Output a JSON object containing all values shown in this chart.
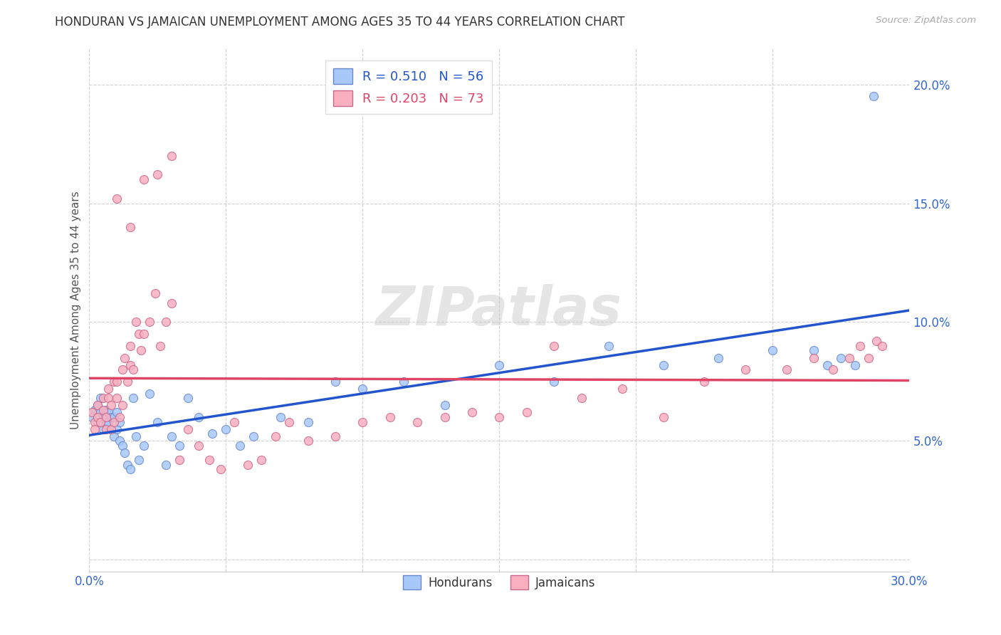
{
  "title": "HONDURAN VS JAMAICAN UNEMPLOYMENT AMONG AGES 35 TO 44 YEARS CORRELATION CHART",
  "source": "Source: ZipAtlas.com",
  "ylabel": "Unemployment Among Ages 35 to 44 years",
  "xlim": [
    0.0,
    0.3
  ],
  "ylim": [
    -0.005,
    0.215
  ],
  "honduran_color": "#a8c8fa",
  "jamaican_color": "#f8b0c0",
  "honduran_edge": "#6688cc",
  "jamaican_edge": "#cc6688",
  "line_honduran": "#2255cc",
  "line_jamaican": "#dd4466",
  "legend_honduran_r": "R = 0.510",
  "legend_honduran_n": "N = 56",
  "legend_jamaican_r": "R = 0.203",
  "legend_jamaican_n": "N = 73",
  "grid_color": "#cccccc",
  "background_color": "#ffffff",
  "watermark": "ZIPatlas",
  "honduran_x": [
    0.001,
    0.002,
    0.003,
    0.003,
    0.004,
    0.004,
    0.005,
    0.005,
    0.006,
    0.006,
    0.007,
    0.007,
    0.008,
    0.008,
    0.009,
    0.009,
    0.01,
    0.01,
    0.011,
    0.011,
    0.012,
    0.013,
    0.014,
    0.015,
    0.016,
    0.017,
    0.018,
    0.02,
    0.022,
    0.025,
    0.028,
    0.03,
    0.033,
    0.036,
    0.04,
    0.045,
    0.05,
    0.055,
    0.06,
    0.07,
    0.08,
    0.09,
    0.1,
    0.115,
    0.13,
    0.15,
    0.17,
    0.19,
    0.21,
    0.23,
    0.25,
    0.265,
    0.27,
    0.275,
    0.28,
    0.287
  ],
  "honduran_y": [
    0.06,
    0.063,
    0.065,
    0.058,
    0.062,
    0.068,
    0.06,
    0.055,
    0.057,
    0.063,
    0.058,
    0.062,
    0.06,
    0.055,
    0.052,
    0.06,
    0.062,
    0.055,
    0.05,
    0.058,
    0.048,
    0.045,
    0.04,
    0.038,
    0.068,
    0.052,
    0.042,
    0.048,
    0.07,
    0.058,
    0.04,
    0.052,
    0.048,
    0.068,
    0.06,
    0.053,
    0.055,
    0.048,
    0.052,
    0.06,
    0.058,
    0.075,
    0.072,
    0.075,
    0.065,
    0.082,
    0.075,
    0.09,
    0.082,
    0.085,
    0.088,
    0.088,
    0.082,
    0.085,
    0.082,
    0.195
  ],
  "jamaican_x": [
    0.001,
    0.002,
    0.002,
    0.003,
    0.003,
    0.004,
    0.005,
    0.005,
    0.006,
    0.006,
    0.007,
    0.007,
    0.008,
    0.008,
    0.009,
    0.009,
    0.01,
    0.01,
    0.011,
    0.012,
    0.012,
    0.013,
    0.014,
    0.015,
    0.015,
    0.016,
    0.017,
    0.018,
    0.019,
    0.02,
    0.022,
    0.024,
    0.026,
    0.028,
    0.03,
    0.033,
    0.036,
    0.04,
    0.044,
    0.048,
    0.053,
    0.058,
    0.063,
    0.068,
    0.073,
    0.08,
    0.09,
    0.1,
    0.11,
    0.12,
    0.13,
    0.14,
    0.15,
    0.16,
    0.17,
    0.18,
    0.195,
    0.21,
    0.225,
    0.24,
    0.255,
    0.265,
    0.272,
    0.278,
    0.282,
    0.285,
    0.288,
    0.29,
    0.01,
    0.015,
    0.02,
    0.025,
    0.03
  ],
  "jamaican_y": [
    0.062,
    0.058,
    0.055,
    0.065,
    0.06,
    0.058,
    0.068,
    0.063,
    0.055,
    0.06,
    0.068,
    0.072,
    0.055,
    0.065,
    0.058,
    0.075,
    0.068,
    0.075,
    0.06,
    0.065,
    0.08,
    0.085,
    0.075,
    0.082,
    0.09,
    0.08,
    0.1,
    0.095,
    0.088,
    0.095,
    0.1,
    0.112,
    0.09,
    0.1,
    0.108,
    0.042,
    0.055,
    0.048,
    0.042,
    0.038,
    0.058,
    0.04,
    0.042,
    0.052,
    0.058,
    0.05,
    0.052,
    0.058,
    0.06,
    0.058,
    0.06,
    0.062,
    0.06,
    0.062,
    0.09,
    0.068,
    0.072,
    0.06,
    0.075,
    0.08,
    0.08,
    0.085,
    0.08,
    0.085,
    0.09,
    0.085,
    0.092,
    0.09,
    0.152,
    0.14,
    0.16,
    0.162,
    0.17
  ],
  "marker_size": 75
}
